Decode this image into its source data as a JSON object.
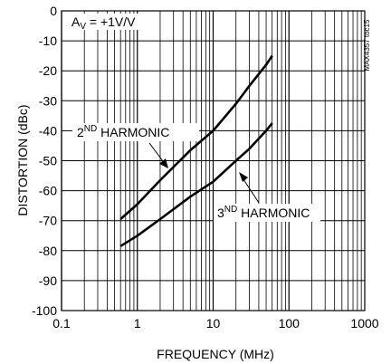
{
  "chart_data": {
    "type": "line",
    "xlabel": "FREQUENCY (MHz)",
    "ylabel": "DISTORTION (dBc)",
    "x_scale": "log",
    "xlim": [
      0.1,
      1000
    ],
    "ylim": [
      -100,
      0
    ],
    "x_ticks": [
      "0.1",
      "1",
      "10",
      "100",
      "1000"
    ],
    "y_ticks": [
      "0",
      "-10",
      "-20",
      "-30",
      "-40",
      "-50",
      "-60",
      "-70",
      "-80",
      "-90",
      "-100"
    ],
    "grid": true,
    "condition": {
      "prefix": "A",
      "sub": "V",
      "value": " = +1V/V"
    },
    "chart_id": "MAX4357 toc15",
    "series": [
      {
        "name": "2ND HARMONIC",
        "label": {
          "base": "2",
          "sup": "ND",
          "rest": " HARMONIC"
        },
        "x": [
          0.6,
          1,
          2,
          5,
          10,
          20,
          30,
          50,
          60
        ],
        "y": [
          -69.5,
          -64.5,
          -56.5,
          -46.5,
          -40,
          -31,
          -25,
          -18,
          -15
        ]
      },
      {
        "name": "3ND HARMONIC",
        "label": {
          "base": "3",
          "sup": "ND",
          "rest": " HARMONIC"
        },
        "x": [
          0.6,
          1,
          2,
          5,
          10,
          20,
          30,
          50,
          60
        ],
        "y": [
          -78.5,
          -75,
          -69.5,
          -62,
          -57,
          -50,
          -46,
          -40,
          -37.5
        ]
      }
    ]
  }
}
